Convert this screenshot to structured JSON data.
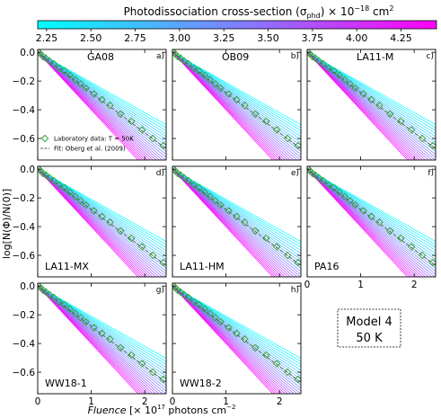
{
  "colorbar": {
    "label": "Photodissociation cross-section (σ",
    "label_sub": "phd",
    "label_tail": ") × 10",
    "label_exp": "−18",
    "label_unit": " cm",
    "label_unit_exp": "2",
    "ticks": [
      "2.25",
      "2.50",
      "2.75",
      "3.00",
      "3.25",
      "3.50",
      "3.75",
      "4.00",
      "4.25"
    ],
    "range": [
      2.2,
      4.45
    ],
    "colors": [
      "#00ffff",
      "#ff00ff"
    ]
  },
  "axes": {
    "ylabel": "log[N(Φ)/N(0)]",
    "xlabel_italic": "Fluence",
    "xlabel_rest": " [× 10",
    "xlabel_exp": "17",
    "xlabel_unit": " photons cm",
    "xlabel_unit_exp": "−2",
    "yticks": [
      "0.0",
      "−0.2",
      "−0.4",
      "−0.6"
    ],
    "xticks": [
      "0",
      "1",
      "2"
    ]
  },
  "legend": {
    "data_label": "Laboratory data: T = 50K",
    "fit_label": "Fit: Oberg et al. (2009)"
  },
  "model_box": {
    "line1": "Model 4",
    "line2": "50 K"
  },
  "colors": {
    "data_marker": "#2ca02c",
    "fit_line": "#555555"
  },
  "chart_data": {
    "type": "line",
    "xlim": [
      0,
      2.4
    ],
    "ylim": [
      -0.75,
      0.02
    ],
    "x_tick_values": [
      0,
      1,
      2
    ],
    "y_tick_values": [
      0,
      -0.2,
      -0.4,
      -0.6
    ],
    "sigma_values": [
      2.2,
      2.3,
      2.4,
      2.5,
      2.6,
      2.7,
      2.8,
      2.9,
      3.0,
      3.1,
      3.2,
      3.3,
      3.4,
      3.5,
      3.6,
      3.7,
      3.8,
      3.9,
      4.0,
      4.1,
      4.2,
      4.3,
      4.4
    ],
    "panels": [
      {
        "label": "GA08",
        "letter": "a)",
        "slope": -0.27,
        "fit_slope": -0.28,
        "data": [
          [
            0.02,
            0.0
          ],
          [
            0.05,
            -0.01
          ],
          [
            0.1,
            -0.03
          ],
          [
            0.15,
            -0.04
          ],
          [
            0.22,
            -0.06
          ],
          [
            0.3,
            -0.08
          ],
          [
            0.4,
            -0.11
          ],
          [
            0.5,
            -0.13
          ],
          [
            0.6,
            -0.16
          ],
          [
            0.7,
            -0.19
          ],
          [
            0.8,
            -0.22
          ],
          [
            0.9,
            -0.25
          ],
          [
            1.05,
            -0.29
          ],
          [
            1.2,
            -0.33
          ],
          [
            1.35,
            -0.37
          ],
          [
            1.55,
            -0.43
          ],
          [
            1.75,
            -0.48
          ],
          [
            1.95,
            -0.54
          ],
          [
            2.15,
            -0.6
          ],
          [
            2.35,
            -0.65
          ]
        ]
      },
      {
        "label": "OB09",
        "letter": "b)",
        "slope": -0.27,
        "fit_slope": -0.28,
        "data": [
          [
            0.02,
            0.0
          ],
          [
            0.05,
            -0.01
          ],
          [
            0.1,
            -0.03
          ],
          [
            0.15,
            -0.04
          ],
          [
            0.22,
            -0.06
          ],
          [
            0.3,
            -0.08
          ],
          [
            0.4,
            -0.11
          ],
          [
            0.5,
            -0.13
          ],
          [
            0.6,
            -0.16
          ],
          [
            0.7,
            -0.19
          ],
          [
            0.8,
            -0.22
          ],
          [
            0.9,
            -0.25
          ],
          [
            1.05,
            -0.29
          ],
          [
            1.2,
            -0.33
          ],
          [
            1.35,
            -0.37
          ],
          [
            1.55,
            -0.43
          ],
          [
            1.75,
            -0.48
          ],
          [
            1.95,
            -0.54
          ],
          [
            2.15,
            -0.6
          ],
          [
            2.35,
            -0.65
          ]
        ]
      },
      {
        "label": "LA11-M",
        "letter": "c)",
        "slope": -0.27,
        "fit_slope": -0.28,
        "data": [
          [
            0.02,
            0.0
          ],
          [
            0.05,
            -0.01
          ],
          [
            0.1,
            -0.03
          ],
          [
            0.15,
            -0.04
          ],
          [
            0.22,
            -0.06
          ],
          [
            0.3,
            -0.08
          ],
          [
            0.4,
            -0.11
          ],
          [
            0.5,
            -0.13
          ],
          [
            0.6,
            -0.16
          ],
          [
            0.7,
            -0.19
          ],
          [
            0.8,
            -0.22
          ],
          [
            0.9,
            -0.25
          ],
          [
            1.05,
            -0.29
          ],
          [
            1.2,
            -0.33
          ],
          [
            1.35,
            -0.37
          ],
          [
            1.55,
            -0.43
          ],
          [
            1.75,
            -0.48
          ],
          [
            1.95,
            -0.54
          ],
          [
            2.15,
            -0.6
          ],
          [
            2.35,
            -0.65
          ]
        ]
      },
      {
        "label": "LA11-MX",
        "letter": "d)",
        "slope": -0.27,
        "fit_slope": -0.28,
        "data": [
          [
            0.02,
            0.0
          ],
          [
            0.05,
            -0.01
          ],
          [
            0.1,
            -0.03
          ],
          [
            0.15,
            -0.04
          ],
          [
            0.22,
            -0.06
          ],
          [
            0.3,
            -0.08
          ],
          [
            0.4,
            -0.11
          ],
          [
            0.5,
            -0.13
          ],
          [
            0.6,
            -0.16
          ],
          [
            0.7,
            -0.19
          ],
          [
            0.8,
            -0.22
          ],
          [
            0.9,
            -0.25
          ],
          [
            1.05,
            -0.29
          ],
          [
            1.2,
            -0.33
          ],
          [
            1.35,
            -0.37
          ],
          [
            1.55,
            -0.43
          ],
          [
            1.75,
            -0.48
          ],
          [
            1.95,
            -0.54
          ],
          [
            2.15,
            -0.6
          ],
          [
            2.35,
            -0.65
          ]
        ]
      },
      {
        "label": "LA11-HM",
        "letter": "e)",
        "slope": -0.27,
        "fit_slope": -0.28,
        "data": [
          [
            0.02,
            0.0
          ],
          [
            0.05,
            -0.01
          ],
          [
            0.1,
            -0.03
          ],
          [
            0.15,
            -0.04
          ],
          [
            0.22,
            -0.06
          ],
          [
            0.3,
            -0.08
          ],
          [
            0.4,
            -0.11
          ],
          [
            0.5,
            -0.13
          ],
          [
            0.6,
            -0.16
          ],
          [
            0.7,
            -0.19
          ],
          [
            0.8,
            -0.22
          ],
          [
            0.9,
            -0.25
          ],
          [
            1.05,
            -0.29
          ],
          [
            1.2,
            -0.33
          ],
          [
            1.35,
            -0.37
          ],
          [
            1.55,
            -0.43
          ],
          [
            1.75,
            -0.48
          ],
          [
            1.95,
            -0.54
          ],
          [
            2.15,
            -0.6
          ],
          [
            2.35,
            -0.65
          ]
        ]
      },
      {
        "label": "PA16",
        "letter": "f)",
        "slope": -0.27,
        "fit_slope": -0.28,
        "data": [
          [
            0.02,
            0.0
          ],
          [
            0.05,
            -0.01
          ],
          [
            0.1,
            -0.03
          ],
          [
            0.15,
            -0.04
          ],
          [
            0.22,
            -0.06
          ],
          [
            0.3,
            -0.08
          ],
          [
            0.4,
            -0.11
          ],
          [
            0.5,
            -0.13
          ],
          [
            0.6,
            -0.16
          ],
          [
            0.7,
            -0.19
          ],
          [
            0.8,
            -0.22
          ],
          [
            0.9,
            -0.25
          ],
          [
            1.05,
            -0.29
          ],
          [
            1.2,
            -0.33
          ],
          [
            1.35,
            -0.37
          ],
          [
            1.55,
            -0.43
          ],
          [
            1.75,
            -0.48
          ],
          [
            1.95,
            -0.54
          ],
          [
            2.15,
            -0.6
          ],
          [
            2.35,
            -0.65
          ]
        ]
      },
      {
        "label": "WW18-1",
        "letter": "g)",
        "slope": -0.27,
        "fit_slope": -0.28,
        "data": [
          [
            0.02,
            0.0
          ],
          [
            0.05,
            -0.01
          ],
          [
            0.1,
            -0.03
          ],
          [
            0.15,
            -0.04
          ],
          [
            0.22,
            -0.06
          ],
          [
            0.3,
            -0.08
          ],
          [
            0.4,
            -0.11
          ],
          [
            0.5,
            -0.13
          ],
          [
            0.6,
            -0.16
          ],
          [
            0.7,
            -0.19
          ],
          [
            0.8,
            -0.22
          ],
          [
            0.9,
            -0.25
          ],
          [
            1.05,
            -0.29
          ],
          [
            1.2,
            -0.33
          ],
          [
            1.35,
            -0.37
          ],
          [
            1.55,
            -0.43
          ],
          [
            1.75,
            -0.48
          ],
          [
            1.95,
            -0.54
          ],
          [
            2.15,
            -0.6
          ],
          [
            2.35,
            -0.65
          ]
        ]
      },
      {
        "label": "WW18-2",
        "letter": "h)",
        "slope": -0.27,
        "fit_slope": -0.28,
        "data": [
          [
            0.02,
            0.0
          ],
          [
            0.05,
            -0.01
          ],
          [
            0.1,
            -0.03
          ],
          [
            0.15,
            -0.04
          ],
          [
            0.22,
            -0.06
          ],
          [
            0.3,
            -0.08
          ],
          [
            0.4,
            -0.11
          ],
          [
            0.5,
            -0.13
          ],
          [
            0.6,
            -0.16
          ],
          [
            0.7,
            -0.19
          ],
          [
            0.8,
            -0.22
          ],
          [
            0.9,
            -0.25
          ],
          [
            1.05,
            -0.29
          ],
          [
            1.2,
            -0.33
          ],
          [
            1.35,
            -0.37
          ],
          [
            1.55,
            -0.43
          ],
          [
            1.75,
            -0.48
          ],
          [
            1.95,
            -0.54
          ],
          [
            2.15,
            -0.6
          ],
          [
            2.35,
            -0.65
          ]
        ]
      }
    ]
  }
}
